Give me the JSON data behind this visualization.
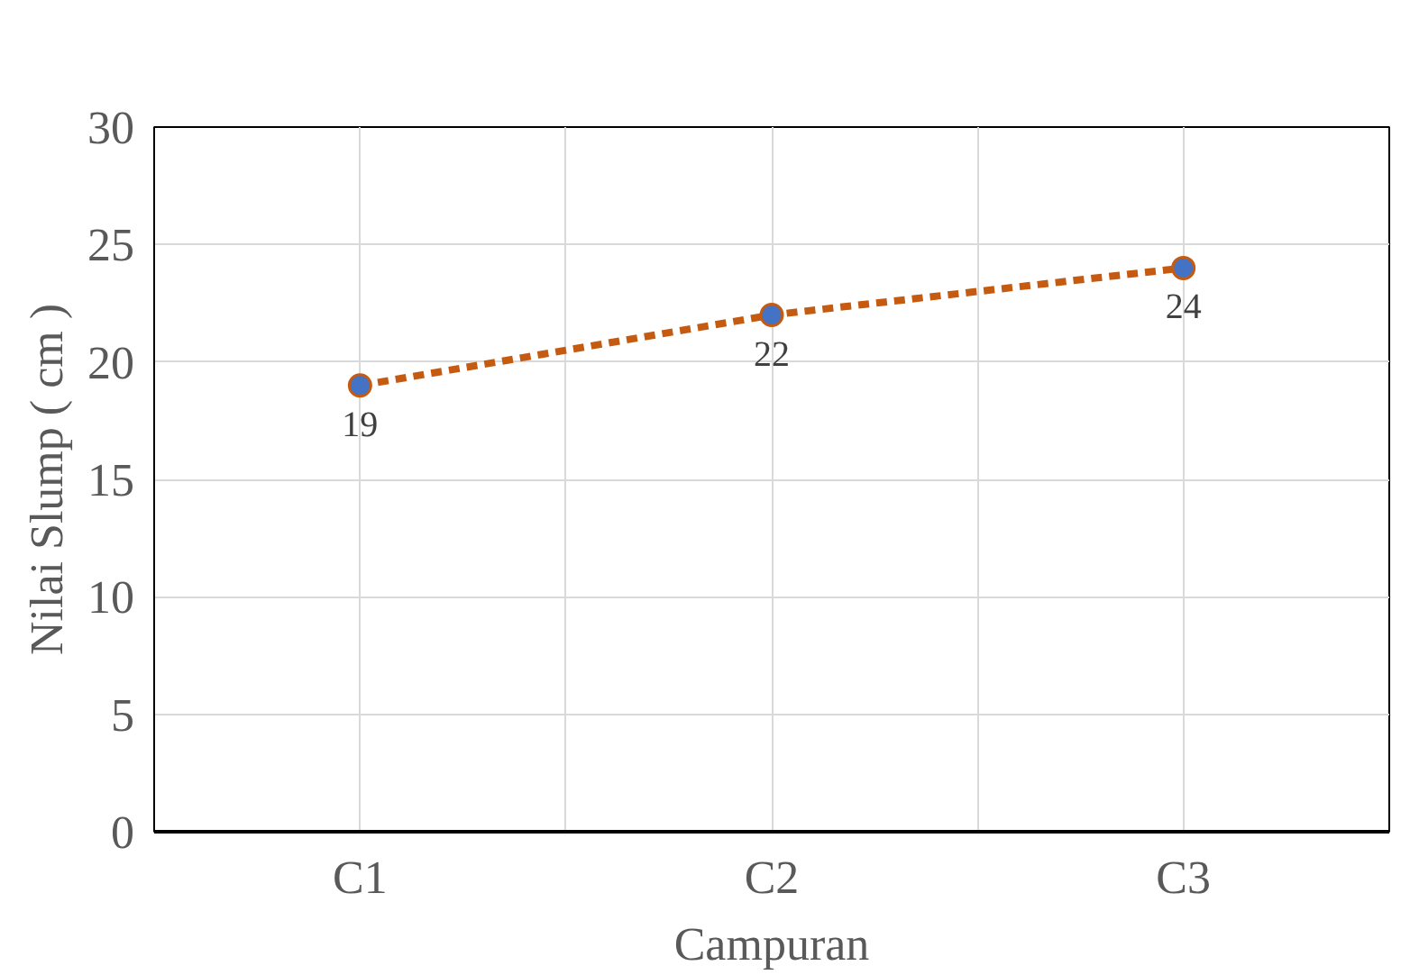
{
  "chart_data": {
    "type": "line",
    "xlabel": "Campuran",
    "ylabel": "Nilai Slump ( cm )",
    "categories": [
      "C1",
      "C2",
      "C3"
    ],
    "series": [
      {
        "color": "#c55a11",
        "values": [
          19,
          22,
          24
        ]
      }
    ],
    "ylim": [
      0,
      30
    ],
    "yticks": [
      0,
      5,
      10,
      15,
      20,
      25,
      30
    ],
    "grid": true,
    "marker": "circle",
    "line_style": "dashed",
    "data_labels": true
  }
}
